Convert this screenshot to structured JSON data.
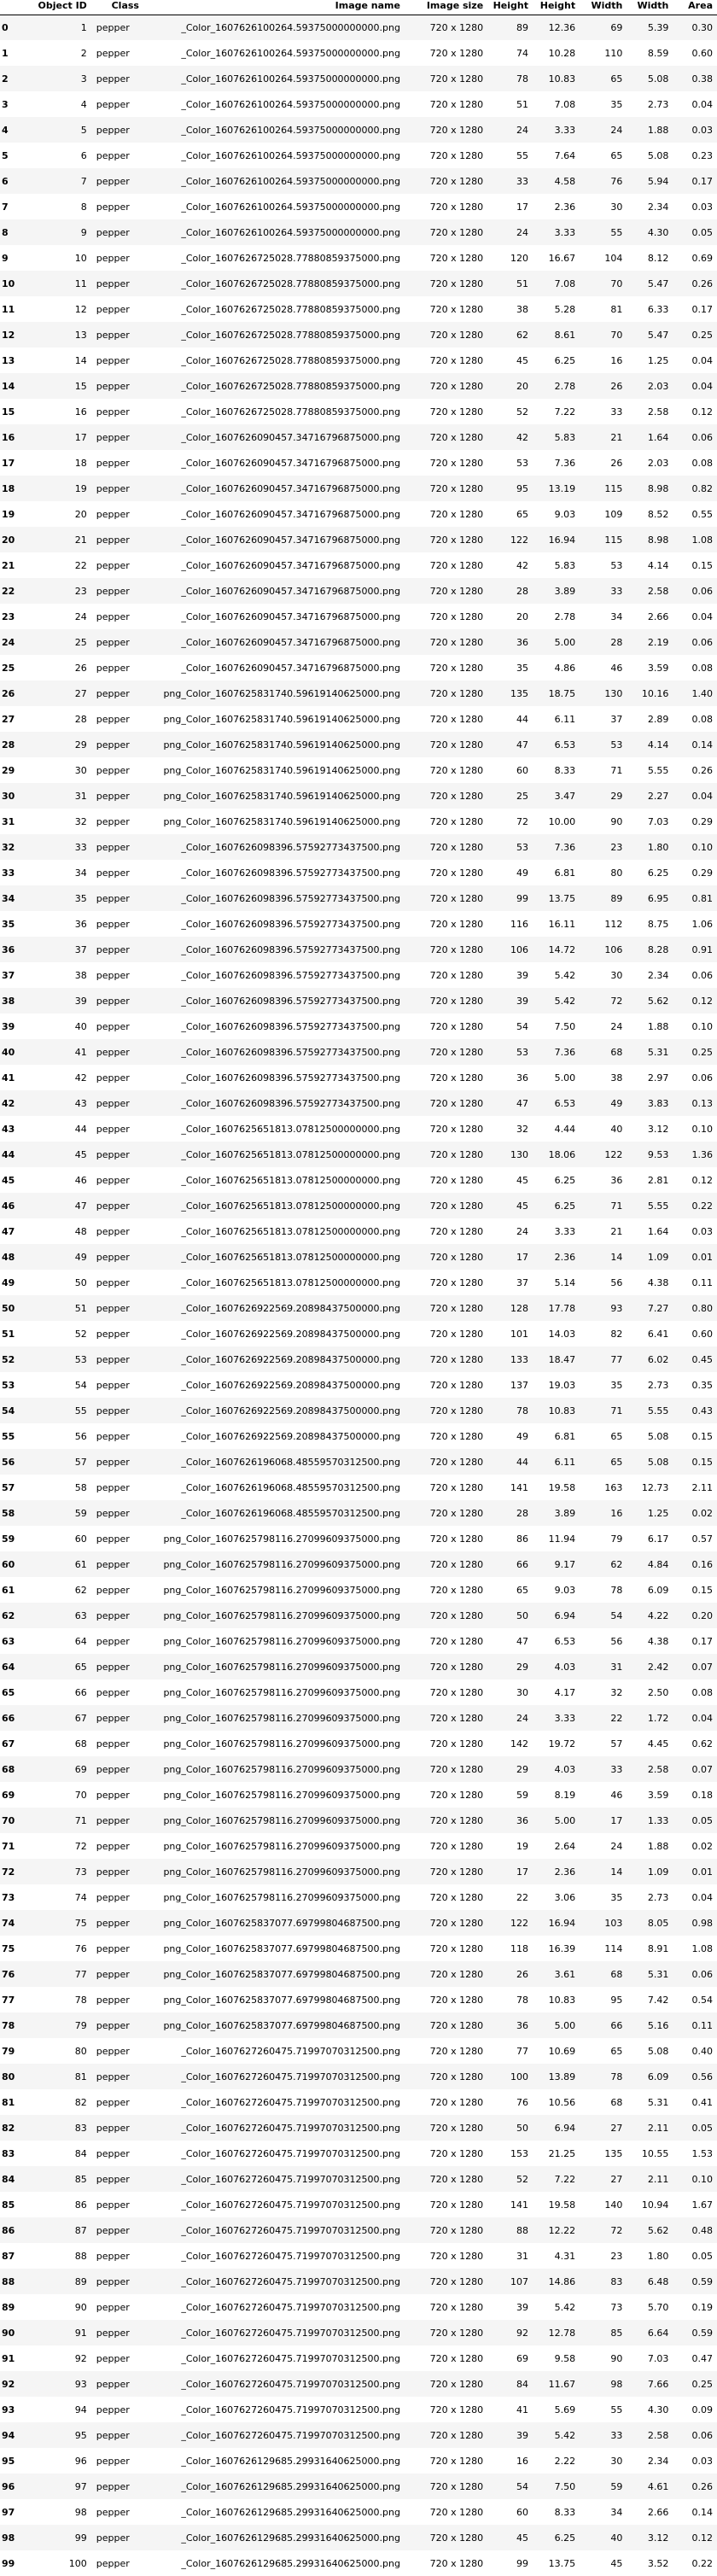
{
  "columns": [
    "",
    "Object ID",
    "Class",
    "Image name",
    "Image size",
    "Height",
    "Height",
    "Width",
    "Width",
    "Area"
  ],
  "rows": [
    [
      "0",
      "1",
      "pepper",
      "_Color_1607626100264.59375000000000.png",
      "720 x 1280",
      "89",
      "12.36",
      "69",
      "5.39",
      "0.30"
    ],
    [
      "1",
      "2",
      "pepper",
      "_Color_1607626100264.59375000000000.png",
      "720 x 1280",
      "74",
      "10.28",
      "110",
      "8.59",
      "0.60"
    ],
    [
      "2",
      "3",
      "pepper",
      "_Color_1607626100264.59375000000000.png",
      "720 x 1280",
      "78",
      "10.83",
      "65",
      "5.08",
      "0.38"
    ],
    [
      "3",
      "4",
      "pepper",
      "_Color_1607626100264.59375000000000.png",
      "720 x 1280",
      "51",
      "7.08",
      "35",
      "2.73",
      "0.04"
    ],
    [
      "4",
      "5",
      "pepper",
      "_Color_1607626100264.59375000000000.png",
      "720 x 1280",
      "24",
      "3.33",
      "24",
      "1.88",
      "0.03"
    ],
    [
      "5",
      "6",
      "pepper",
      "_Color_1607626100264.59375000000000.png",
      "720 x 1280",
      "55",
      "7.64",
      "65",
      "5.08",
      "0.23"
    ],
    [
      "6",
      "7",
      "pepper",
      "_Color_1607626100264.59375000000000.png",
      "720 x 1280",
      "33",
      "4.58",
      "76",
      "5.94",
      "0.17"
    ],
    [
      "7",
      "8",
      "pepper",
      "_Color_1607626100264.59375000000000.png",
      "720 x 1280",
      "17",
      "2.36",
      "30",
      "2.34",
      "0.03"
    ],
    [
      "8",
      "9",
      "pepper",
      "_Color_1607626100264.59375000000000.png",
      "720 x 1280",
      "24",
      "3.33",
      "55",
      "4.30",
      "0.05"
    ],
    [
      "9",
      "10",
      "pepper",
      "_Color_1607626725028.77880859375000.png",
      "720 x 1280",
      "120",
      "16.67",
      "104",
      "8.12",
      "0.69"
    ],
    [
      "10",
      "11",
      "pepper",
      "_Color_1607626725028.77880859375000.png",
      "720 x 1280",
      "51",
      "7.08",
      "70",
      "5.47",
      "0.26"
    ],
    [
      "11",
      "12",
      "pepper",
      "_Color_1607626725028.77880859375000.png",
      "720 x 1280",
      "38",
      "5.28",
      "81",
      "6.33",
      "0.17"
    ],
    [
      "12",
      "13",
      "pepper",
      "_Color_1607626725028.77880859375000.png",
      "720 x 1280",
      "62",
      "8.61",
      "70",
      "5.47",
      "0.25"
    ],
    [
      "13",
      "14",
      "pepper",
      "_Color_1607626725028.77880859375000.png",
      "720 x 1280",
      "45",
      "6.25",
      "16",
      "1.25",
      "0.04"
    ],
    [
      "14",
      "15",
      "pepper",
      "_Color_1607626725028.77880859375000.png",
      "720 x 1280",
      "20",
      "2.78",
      "26",
      "2.03",
      "0.04"
    ],
    [
      "15",
      "16",
      "pepper",
      "_Color_1607626725028.77880859375000.png",
      "720 x 1280",
      "52",
      "7.22",
      "33",
      "2.58",
      "0.12"
    ],
    [
      "16",
      "17",
      "pepper",
      "_Color_1607626090457.34716796875000.png",
      "720 x 1280",
      "42",
      "5.83",
      "21",
      "1.64",
      "0.06"
    ],
    [
      "17",
      "18",
      "pepper",
      "_Color_1607626090457.34716796875000.png",
      "720 x 1280",
      "53",
      "7.36",
      "26",
      "2.03",
      "0.08"
    ],
    [
      "18",
      "19",
      "pepper",
      "_Color_1607626090457.34716796875000.png",
      "720 x 1280",
      "95",
      "13.19",
      "115",
      "8.98",
      "0.82"
    ],
    [
      "19",
      "20",
      "pepper",
      "_Color_1607626090457.34716796875000.png",
      "720 x 1280",
      "65",
      "9.03",
      "109",
      "8.52",
      "0.55"
    ],
    [
      "20",
      "21",
      "pepper",
      "_Color_1607626090457.34716796875000.png",
      "720 x 1280",
      "122",
      "16.94",
      "115",
      "8.98",
      "1.08"
    ],
    [
      "21",
      "22",
      "pepper",
      "_Color_1607626090457.34716796875000.png",
      "720 x 1280",
      "42",
      "5.83",
      "53",
      "4.14",
      "0.15"
    ],
    [
      "22",
      "23",
      "pepper",
      "_Color_1607626090457.34716796875000.png",
      "720 x 1280",
      "28",
      "3.89",
      "33",
      "2.58",
      "0.06"
    ],
    [
      "23",
      "24",
      "pepper",
      "_Color_1607626090457.34716796875000.png",
      "720 x 1280",
      "20",
      "2.78",
      "34",
      "2.66",
      "0.04"
    ],
    [
      "24",
      "25",
      "pepper",
      "_Color_1607626090457.34716796875000.png",
      "720 x 1280",
      "36",
      "5.00",
      "28",
      "2.19",
      "0.06"
    ],
    [
      "25",
      "26",
      "pepper",
      "_Color_1607626090457.34716796875000.png",
      "720 x 1280",
      "35",
      "4.86",
      "46",
      "3.59",
      "0.08"
    ],
    [
      "26",
      "27",
      "pepper",
      "png_Color_1607625831740.59619140625000.png",
      "720 x 1280",
      "135",
      "18.75",
      "130",
      "10.16",
      "1.40"
    ],
    [
      "27",
      "28",
      "pepper",
      "png_Color_1607625831740.59619140625000.png",
      "720 x 1280",
      "44",
      "6.11",
      "37",
      "2.89",
      "0.08"
    ],
    [
      "28",
      "29",
      "pepper",
      "png_Color_1607625831740.59619140625000.png",
      "720 x 1280",
      "47",
      "6.53",
      "53",
      "4.14",
      "0.14"
    ],
    [
      "29",
      "30",
      "pepper",
      "png_Color_1607625831740.59619140625000.png",
      "720 x 1280",
      "60",
      "8.33",
      "71",
      "5.55",
      "0.26"
    ],
    [
      "30",
      "31",
      "pepper",
      "png_Color_1607625831740.59619140625000.png",
      "720 x 1280",
      "25",
      "3.47",
      "29",
      "2.27",
      "0.04"
    ],
    [
      "31",
      "32",
      "pepper",
      "png_Color_1607625831740.59619140625000.png",
      "720 x 1280",
      "72",
      "10.00",
      "90",
      "7.03",
      "0.29"
    ],
    [
      "32",
      "33",
      "pepper",
      "_Color_1607626098396.57592773437500.png",
      "720 x 1280",
      "53",
      "7.36",
      "23",
      "1.80",
      "0.10"
    ],
    [
      "33",
      "34",
      "pepper",
      "_Color_1607626098396.57592773437500.png",
      "720 x 1280",
      "49",
      "6.81",
      "80",
      "6.25",
      "0.29"
    ],
    [
      "34",
      "35",
      "pepper",
      "_Color_1607626098396.57592773437500.png",
      "720 x 1280",
      "99",
      "13.75",
      "89",
      "6.95",
      "0.81"
    ],
    [
      "35",
      "36",
      "pepper",
      "_Color_1607626098396.57592773437500.png",
      "720 x 1280",
      "116",
      "16.11",
      "112",
      "8.75",
      "1.06"
    ],
    [
      "36",
      "37",
      "pepper",
      "_Color_1607626098396.57592773437500.png",
      "720 x 1280",
      "106",
      "14.72",
      "106",
      "8.28",
      "0.91"
    ],
    [
      "37",
      "38",
      "pepper",
      "_Color_1607626098396.57592773437500.png",
      "720 x 1280",
      "39",
      "5.42",
      "30",
      "2.34",
      "0.06"
    ],
    [
      "38",
      "39",
      "pepper",
      "_Color_1607626098396.57592773437500.png",
      "720 x 1280",
      "39",
      "5.42",
      "72",
      "5.62",
      "0.12"
    ],
    [
      "39",
      "40",
      "pepper",
      "_Color_1607626098396.57592773437500.png",
      "720 x 1280",
      "54",
      "7.50",
      "24",
      "1.88",
      "0.10"
    ],
    [
      "40",
      "41",
      "pepper",
      "_Color_1607626098396.57592773437500.png",
      "720 x 1280",
      "53",
      "7.36",
      "68",
      "5.31",
      "0.25"
    ],
    [
      "41",
      "42",
      "pepper",
      "_Color_1607626098396.57592773437500.png",
      "720 x 1280",
      "36",
      "5.00",
      "38",
      "2.97",
      "0.06"
    ],
    [
      "42",
      "43",
      "pepper",
      "_Color_1607626098396.57592773437500.png",
      "720 x 1280",
      "47",
      "6.53",
      "49",
      "3.83",
      "0.13"
    ],
    [
      "43",
      "44",
      "pepper",
      "_Color_1607625651813.07812500000000.png",
      "720 x 1280",
      "32",
      "4.44",
      "40",
      "3.12",
      "0.10"
    ],
    [
      "44",
      "45",
      "pepper",
      "_Color_1607625651813.07812500000000.png",
      "720 x 1280",
      "130",
      "18.06",
      "122",
      "9.53",
      "1.36"
    ],
    [
      "45",
      "46",
      "pepper",
      "_Color_1607625651813.07812500000000.png",
      "720 x 1280",
      "45",
      "6.25",
      "36",
      "2.81",
      "0.12"
    ],
    [
      "46",
      "47",
      "pepper",
      "_Color_1607625651813.07812500000000.png",
      "720 x 1280",
      "45",
      "6.25",
      "71",
      "5.55",
      "0.22"
    ],
    [
      "47",
      "48",
      "pepper",
      "_Color_1607625651813.07812500000000.png",
      "720 x 1280",
      "24",
      "3.33",
      "21",
      "1.64",
      "0.03"
    ],
    [
      "48",
      "49",
      "pepper",
      "_Color_1607625651813.07812500000000.png",
      "720 x 1280",
      "17",
      "2.36",
      "14",
      "1.09",
      "0.01"
    ],
    [
      "49",
      "50",
      "pepper",
      "_Color_1607625651813.07812500000000.png",
      "720 x 1280",
      "37",
      "5.14",
      "56",
      "4.38",
      "0.11"
    ],
    [
      "50",
      "51",
      "pepper",
      "_Color_1607626922569.20898437500000.png",
      "720 x 1280",
      "128",
      "17.78",
      "93",
      "7.27",
      "0.80"
    ],
    [
      "51",
      "52",
      "pepper",
      "_Color_1607626922569.20898437500000.png",
      "720 x 1280",
      "101",
      "14.03",
      "82",
      "6.41",
      "0.60"
    ],
    [
      "52",
      "53",
      "pepper",
      "_Color_1607626922569.20898437500000.png",
      "720 x 1280",
      "133",
      "18.47",
      "77",
      "6.02",
      "0.45"
    ],
    [
      "53",
      "54",
      "pepper",
      "_Color_1607626922569.20898437500000.png",
      "720 x 1280",
      "137",
      "19.03",
      "35",
      "2.73",
      "0.35"
    ],
    [
      "54",
      "55",
      "pepper",
      "_Color_1607626922569.20898437500000.png",
      "720 x 1280",
      "78",
      "10.83",
      "71",
      "5.55",
      "0.43"
    ],
    [
      "55",
      "56",
      "pepper",
      "_Color_1607626922569.20898437500000.png",
      "720 x 1280",
      "49",
      "6.81",
      "65",
      "5.08",
      "0.15"
    ],
    [
      "56",
      "57",
      "pepper",
      "_Color_1607626196068.48559570312500.png",
      "720 x 1280",
      "44",
      "6.11",
      "65",
      "5.08",
      "0.15"
    ],
    [
      "57",
      "58",
      "pepper",
      "_Color_1607626196068.48559570312500.png",
      "720 x 1280",
      "141",
      "19.58",
      "163",
      "12.73",
      "2.11"
    ],
    [
      "58",
      "59",
      "pepper",
      "_Color_1607626196068.48559570312500.png",
      "720 x 1280",
      "28",
      "3.89",
      "16",
      "1.25",
      "0.02"
    ],
    [
      "59",
      "60",
      "pepper",
      "png_Color_1607625798116.27099609375000.png",
      "720 x 1280",
      "86",
      "11.94",
      "79",
      "6.17",
      "0.57"
    ],
    [
      "60",
      "61",
      "pepper",
      "png_Color_1607625798116.27099609375000.png",
      "720 x 1280",
      "66",
      "9.17",
      "62",
      "4.84",
      "0.16"
    ],
    [
      "61",
      "62",
      "pepper",
      "png_Color_1607625798116.27099609375000.png",
      "720 x 1280",
      "65",
      "9.03",
      "78",
      "6.09",
      "0.15"
    ],
    [
      "62",
      "63",
      "pepper",
      "png_Color_1607625798116.27099609375000.png",
      "720 x 1280",
      "50",
      "6.94",
      "54",
      "4.22",
      "0.20"
    ],
    [
      "63",
      "64",
      "pepper",
      "png_Color_1607625798116.27099609375000.png",
      "720 x 1280",
      "47",
      "6.53",
      "56",
      "4.38",
      "0.17"
    ],
    [
      "64",
      "65",
      "pepper",
      "png_Color_1607625798116.27099609375000.png",
      "720 x 1280",
      "29",
      "4.03",
      "31",
      "2.42",
      "0.07"
    ],
    [
      "65",
      "66",
      "pepper",
      "png_Color_1607625798116.27099609375000.png",
      "720 x 1280",
      "30",
      "4.17",
      "32",
      "2.50",
      "0.08"
    ],
    [
      "66",
      "67",
      "pepper",
      "png_Color_1607625798116.27099609375000.png",
      "720 x 1280",
      "24",
      "3.33",
      "22",
      "1.72",
      "0.04"
    ],
    [
      "67",
      "68",
      "pepper",
      "png_Color_1607625798116.27099609375000.png",
      "720 x 1280",
      "142",
      "19.72",
      "57",
      "4.45",
      "0.62"
    ],
    [
      "68",
      "69",
      "pepper",
      "png_Color_1607625798116.27099609375000.png",
      "720 x 1280",
      "29",
      "4.03",
      "33",
      "2.58",
      "0.07"
    ],
    [
      "69",
      "70",
      "pepper",
      "png_Color_1607625798116.27099609375000.png",
      "720 x 1280",
      "59",
      "8.19",
      "46",
      "3.59",
      "0.18"
    ],
    [
      "70",
      "71",
      "pepper",
      "png_Color_1607625798116.27099609375000.png",
      "720 x 1280",
      "36",
      "5.00",
      "17",
      "1.33",
      "0.05"
    ],
    [
      "71",
      "72",
      "pepper",
      "png_Color_1607625798116.27099609375000.png",
      "720 x 1280",
      "19",
      "2.64",
      "24",
      "1.88",
      "0.02"
    ],
    [
      "72",
      "73",
      "pepper",
      "png_Color_1607625798116.27099609375000.png",
      "720 x 1280",
      "17",
      "2.36",
      "14",
      "1.09",
      "0.01"
    ],
    [
      "73",
      "74",
      "pepper",
      "png_Color_1607625798116.27099609375000.png",
      "720 x 1280",
      "22",
      "3.06",
      "35",
      "2.73",
      "0.04"
    ],
    [
      "74",
      "75",
      "pepper",
      "png_Color_1607625837077.69799804687500.png",
      "720 x 1280",
      "122",
      "16.94",
      "103",
      "8.05",
      "0.98"
    ],
    [
      "75",
      "76",
      "pepper",
      "png_Color_1607625837077.69799804687500.png",
      "720 x 1280",
      "118",
      "16.39",
      "114",
      "8.91",
      "1.08"
    ],
    [
      "76",
      "77",
      "pepper",
      "png_Color_1607625837077.69799804687500.png",
      "720 x 1280",
      "26",
      "3.61",
      "68",
      "5.31",
      "0.06"
    ],
    [
      "77",
      "78",
      "pepper",
      "png_Color_1607625837077.69799804687500.png",
      "720 x 1280",
      "78",
      "10.83",
      "95",
      "7.42",
      "0.54"
    ],
    [
      "78",
      "79",
      "pepper",
      "png_Color_1607625837077.69799804687500.png",
      "720 x 1280",
      "36",
      "5.00",
      "66",
      "5.16",
      "0.11"
    ],
    [
      "79",
      "80",
      "pepper",
      "_Color_1607627260475.71997070312500.png",
      "720 x 1280",
      "77",
      "10.69",
      "65",
      "5.08",
      "0.40"
    ],
    [
      "80",
      "81",
      "pepper",
      "_Color_1607627260475.71997070312500.png",
      "720 x 1280",
      "100",
      "13.89",
      "78",
      "6.09",
      "0.56"
    ],
    [
      "81",
      "82",
      "pepper",
      "_Color_1607627260475.71997070312500.png",
      "720 x 1280",
      "76",
      "10.56",
      "68",
      "5.31",
      "0.41"
    ],
    [
      "82",
      "83",
      "pepper",
      "_Color_1607627260475.71997070312500.png",
      "720 x 1280",
      "50",
      "6.94",
      "27",
      "2.11",
      "0.05"
    ],
    [
      "83",
      "84",
      "pepper",
      "_Color_1607627260475.71997070312500.png",
      "720 x 1280",
      "153",
      "21.25",
      "135",
      "10.55",
      "1.53"
    ],
    [
      "84",
      "85",
      "pepper",
      "_Color_1607627260475.71997070312500.png",
      "720 x 1280",
      "52",
      "7.22",
      "27",
      "2.11",
      "0.10"
    ],
    [
      "85",
      "86",
      "pepper",
      "_Color_1607627260475.71997070312500.png",
      "720 x 1280",
      "141",
      "19.58",
      "140",
      "10.94",
      "1.67"
    ],
    [
      "86",
      "87",
      "pepper",
      "_Color_1607627260475.71997070312500.png",
      "720 x 1280",
      "88",
      "12.22",
      "72",
      "5.62",
      "0.48"
    ],
    [
      "87",
      "88",
      "pepper",
      "_Color_1607627260475.71997070312500.png",
      "720 x 1280",
      "31",
      "4.31",
      "23",
      "1.80",
      "0.05"
    ],
    [
      "88",
      "89",
      "pepper",
      "_Color_1607627260475.71997070312500.png",
      "720 x 1280",
      "107",
      "14.86",
      "83",
      "6.48",
      "0.59"
    ],
    [
      "89",
      "90",
      "pepper",
      "_Color_1607627260475.71997070312500.png",
      "720 x 1280",
      "39",
      "5.42",
      "73",
      "5.70",
      "0.19"
    ],
    [
      "90",
      "91",
      "pepper",
      "_Color_1607627260475.71997070312500.png",
      "720 x 1280",
      "92",
      "12.78",
      "85",
      "6.64",
      "0.59"
    ],
    [
      "91",
      "92",
      "pepper",
      "_Color_1607627260475.71997070312500.png",
      "720 x 1280",
      "69",
      "9.58",
      "90",
      "7.03",
      "0.47"
    ],
    [
      "92",
      "93",
      "pepper",
      "_Color_1607627260475.71997070312500.png",
      "720 x 1280",
      "84",
      "11.67",
      "98",
      "7.66",
      "0.25"
    ],
    [
      "93",
      "94",
      "pepper",
      "_Color_1607627260475.71997070312500.png",
      "720 x 1280",
      "41",
      "5.69",
      "55",
      "4.30",
      "0.09"
    ],
    [
      "94",
      "95",
      "pepper",
      "_Color_1607627260475.71997070312500.png",
      "720 x 1280",
      "39",
      "5.42",
      "33",
      "2.58",
      "0.06"
    ],
    [
      "95",
      "96",
      "pepper",
      "_Color_1607626129685.29931640625000.png",
      "720 x 1280",
      "16",
      "2.22",
      "30",
      "2.34",
      "0.03"
    ],
    [
      "96",
      "97",
      "pepper",
      "_Color_1607626129685.29931640625000.png",
      "720 x 1280",
      "54",
      "7.50",
      "59",
      "4.61",
      "0.26"
    ],
    [
      "97",
      "98",
      "pepper",
      "_Color_1607626129685.29931640625000.png",
      "720 x 1280",
      "60",
      "8.33",
      "34",
      "2.66",
      "0.14"
    ],
    [
      "98",
      "99",
      "pepper",
      "_Color_1607626129685.29931640625000.png",
      "720 x 1280",
      "45",
      "6.25",
      "40",
      "3.12",
      "0.12"
    ],
    [
      "99",
      "100",
      "pepper",
      "_Color_1607626129685.29931640625000.png",
      "720 x 1280",
      "99",
      "13.75",
      "45",
      "3.52",
      "0.22"
    ]
  ]
}
